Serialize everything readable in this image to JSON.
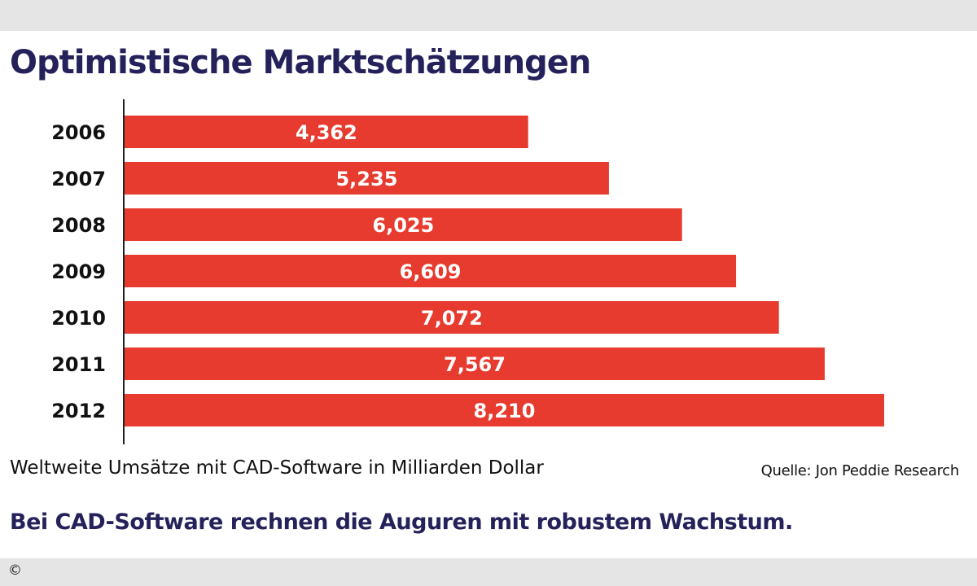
{
  "header": {
    "title": "Optimistische Marktschätzungen"
  },
  "chart_data": {
    "type": "bar",
    "orientation": "horizontal",
    "categories": [
      "2006",
      "2007",
      "2008",
      "2009",
      "2010",
      "2011",
      "2012"
    ],
    "values": [
      4.362,
      5.235,
      6.025,
      6.609,
      7.072,
      7.567,
      8.21
    ],
    "data_labels": [
      "4,362",
      "5,235",
      "6,025",
      "6,609",
      "7,072",
      "7,567",
      "8,210"
    ],
    "xlim": [
      0,
      8.5
    ],
    "grid": false,
    "bar_color": "#e63b2e",
    "label_color": "#ffffff",
    "xlabel": "Weltweite Umsätze mit CAD-Software in Milliarden Dollar"
  },
  "footer": {
    "source": "Quelle: Jon Peddie Research",
    "subtitle": "Bei CAD-Software rechnen die Auguren mit robustem Wachstum.",
    "copyright": "©"
  },
  "colors": {
    "title": "#25215a",
    "band": "#e5e5e5"
  }
}
